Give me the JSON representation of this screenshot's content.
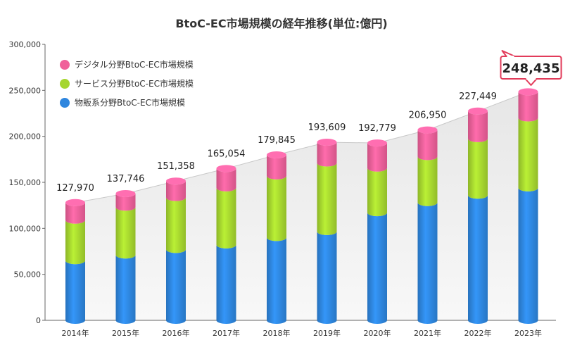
{
  "chart_data": {
    "type": "bar",
    "stacked": true,
    "title": "BtoC-EC市場規模の経年推移(単位:億円)",
    "categories": [
      "2014年",
      "2015年",
      "2016年",
      "2017年",
      "2018年",
      "2019年",
      "2020年",
      "2021年",
      "2022年",
      "2023年"
    ],
    "series": [
      {
        "name": "物販系分野BtoC-EC市場規模",
        "color": "#2e86de",
        "values": [
          64900,
          71000,
          77000,
          82000,
          90000,
          96500,
          117000,
          128000,
          136000,
          144000
        ]
      },
      {
        "name": "サービス分野BtoC-EC市場規模",
        "color": "#a6d62f",
        "values": [
          44000,
          52000,
          56500,
          62000,
          67000,
          74500,
          48500,
          50000,
          61500,
          76000
        ]
      },
      {
        "name": "デジタル分野BtoC-EC市場規模",
        "color": "#f0609a",
        "values": [
          19070,
          14746,
          17858,
          21054,
          22845,
          22609,
          27279,
          28950,
          29949,
          28435
        ]
      }
    ],
    "totals": [
      "127,970",
      "137,746",
      "151,358",
      "165,054",
      "179,845",
      "193,609",
      "192,779",
      "206,950",
      "227,449",
      "248,435"
    ],
    "highlighted_total": "248,435",
    "ylim": [
      0,
      300000
    ],
    "yticks": [
      "0",
      "50,000",
      "100,000",
      "150,000",
      "200,000",
      "250,000",
      "300,000"
    ],
    "ytick_values": [
      0,
      50000,
      100000,
      150000,
      200000,
      250000,
      300000
    ],
    "legend_order": [
      "デジタル分野BtoC-EC市場規模",
      "サービス分野BtoC-EC市場規模",
      "物販系分野BtoC-EC市場規模"
    ],
    "legend_position": "top-left",
    "grid": false
  }
}
